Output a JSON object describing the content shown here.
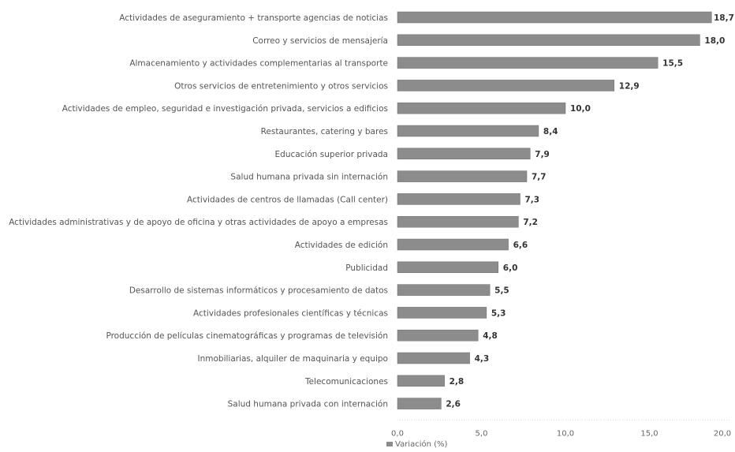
{
  "chart_data": {
    "type": "bar",
    "orientation": "horizontal",
    "categories": [
      "Actividades de aseguramiento + transporte agencias de noticias",
      "Correo y servicios de mensajería",
      "Almacenamiento y actividades complementarias al transporte",
      "Otros servicios de entretenimiento y otros servicios",
      "Actividades de empleo, seguridad e investigación privada, servicios a edificios",
      "Restaurantes, catering y bares",
      "Educación superior privada",
      "Salud humana privada sin internación",
      "Actividades de centros de llamadas (Call center)",
      "Actividades administrativas y de apoyo de oficina y otras actividades de apoyo a empresas",
      "Actividades de edición",
      "Publicidad",
      "Desarrollo de sistemas informáticos y procesamiento de datos",
      "Actividades profesionales científicas y técnicas",
      "Producción de películas cinematográficas y programas de televisión",
      "Inmobiliarias, alquiler de maquinaria y equipo",
      "Telecomunicaciones",
      "Salud humana privada con internación"
    ],
    "values": [
      18.7,
      18.0,
      15.5,
      12.9,
      10.0,
      8.4,
      7.9,
      7.7,
      7.3,
      7.2,
      6.6,
      6.0,
      5.5,
      5.3,
      4.8,
      4.3,
      2.8,
      2.6
    ],
    "value_labels": [
      "18,7",
      "18,0",
      "15,5",
      "12,9",
      "10,0",
      "8,4",
      "7,9",
      "7,7",
      "7,3",
      "7,2",
      "6,6",
      "6,0",
      "5,5",
      "5,3",
      "4,8",
      "4,3",
      "2,8",
      "2,6"
    ],
    "x_ticks": [
      "0,0",
      "5,0",
      "10,0",
      "15,0",
      "20,0"
    ],
    "xlim": [
      0,
      20
    ],
    "legend": {
      "label": "Variación (%)",
      "placement": "bottom-center"
    },
    "grid": false,
    "colors": {
      "bar": "#8c8c8c",
      "bar_edge": "#6f6f6f"
    }
  }
}
